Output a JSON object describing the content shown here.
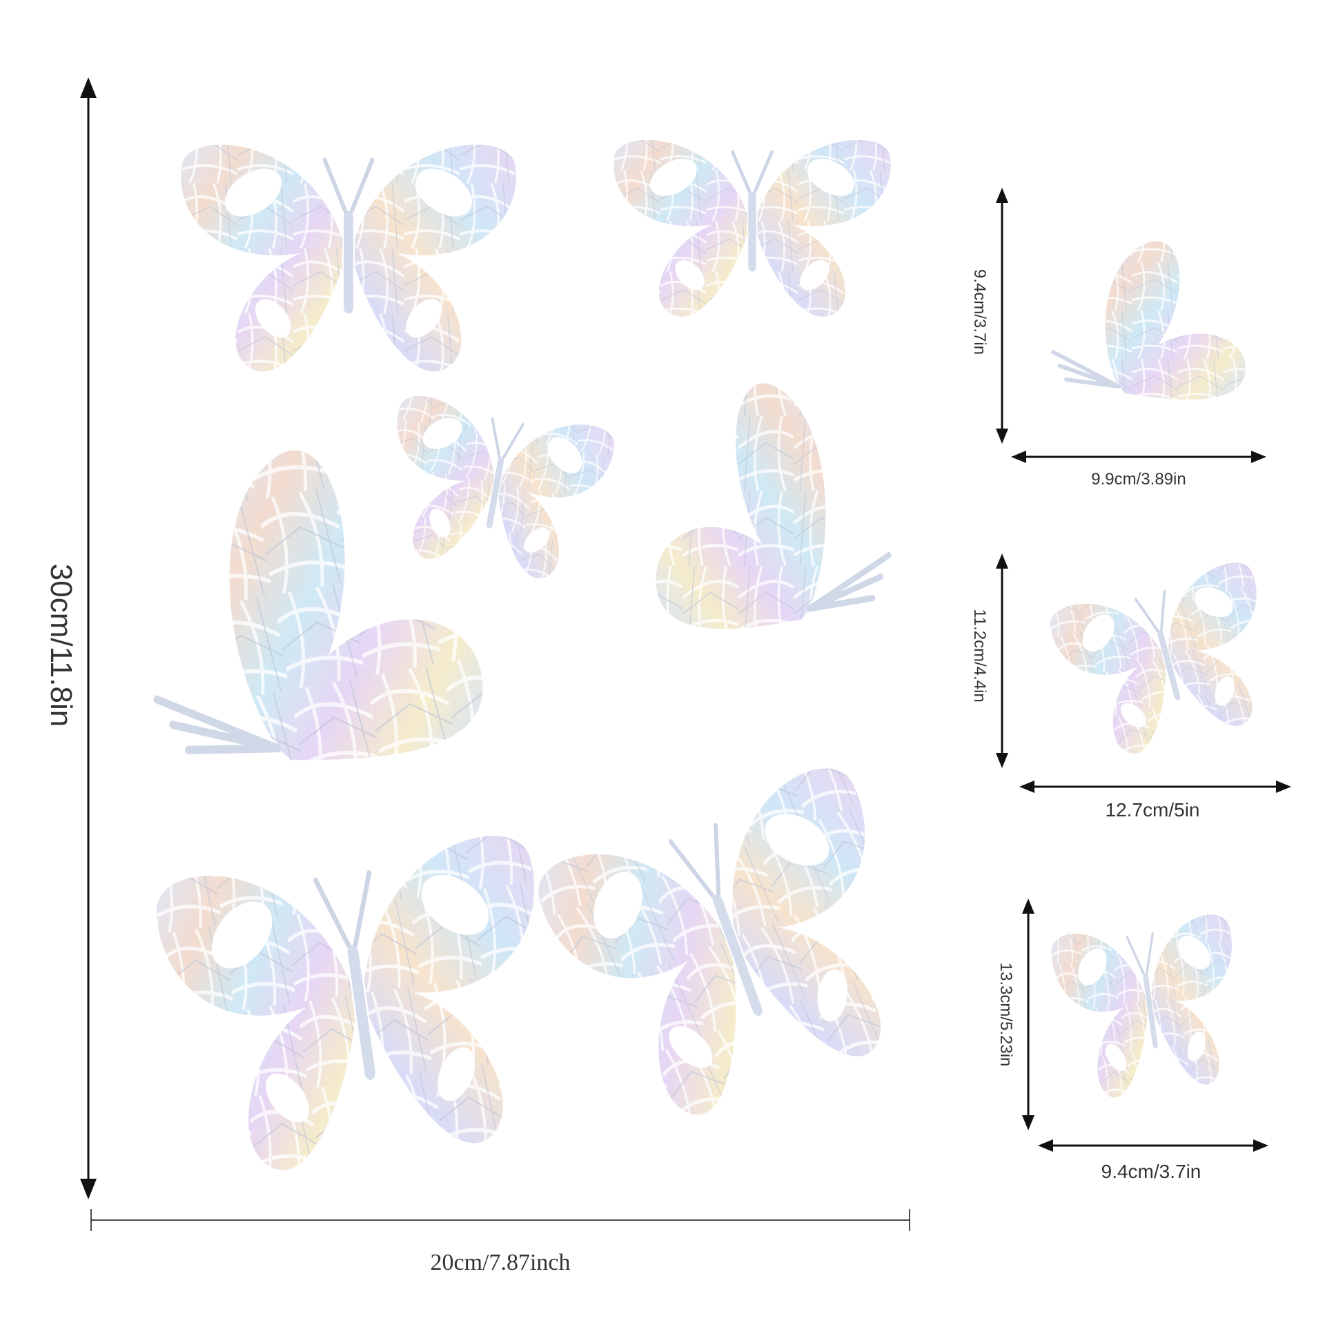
{
  "sheet": {
    "height_label": "30cm/11.8in",
    "width_label": "20cm/7.87inch"
  },
  "samples": [
    {
      "height_label": "9.4cm/3.7in",
      "width_label": "9.9cm/3.89in"
    },
    {
      "height_label": "11.2cm/4.4in",
      "width_label": "12.7cm/5in"
    },
    {
      "height_label": "13.3cm/5.23in",
      "width_label": "9.4cm/3.7in"
    }
  ],
  "colors": {
    "background": "#ffffff",
    "line": "#111111",
    "text": "#333333"
  }
}
